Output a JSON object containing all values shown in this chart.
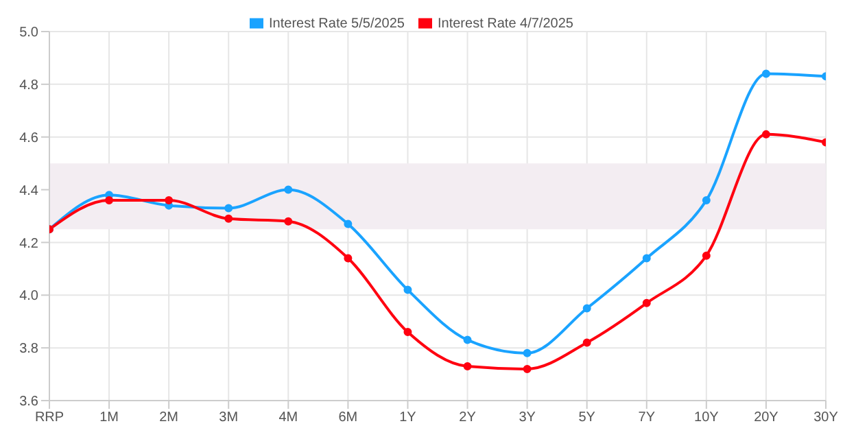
{
  "chart_data": {
    "type": "line",
    "categories": [
      "RRP",
      "1M",
      "2M",
      "3M",
      "4M",
      "6M",
      "1Y",
      "2Y",
      "3Y",
      "5Y",
      "7Y",
      "10Y",
      "20Y",
      "30Y"
    ],
    "series": [
      {
        "name": "Interest Rate 5/5/2025",
        "color": "#1aa3ff",
        "values": [
          4.25,
          4.38,
          4.34,
          4.33,
          4.4,
          4.27,
          4.02,
          3.83,
          3.78,
          3.95,
          4.14,
          4.36,
          4.84,
          4.83
        ]
      },
      {
        "name": "Interest Rate 4/7/2025",
        "color": "#ff0010",
        "values": [
          4.25,
          4.36,
          4.36,
          4.29,
          4.28,
          4.14,
          3.86,
          3.73,
          3.72,
          3.82,
          3.97,
          4.15,
          4.61,
          4.58
        ]
      }
    ],
    "ylim": [
      3.6,
      5.0
    ],
    "yticks": [
      3.6,
      3.8,
      {
        "value": 4,
        "label": "4.0"
      },
      4.2,
      4.4,
      4.6,
      4.8,
      {
        "value": 5,
        "label": "5.0"
      }
    ],
    "bands": [
      {
        "axis": "y",
        "from": 4.25,
        "to": 4.5,
        "color": "#f3edf2"
      }
    ],
    "grid": true,
    "legend": "top",
    "marker": "circle",
    "line_style": "solid"
  }
}
